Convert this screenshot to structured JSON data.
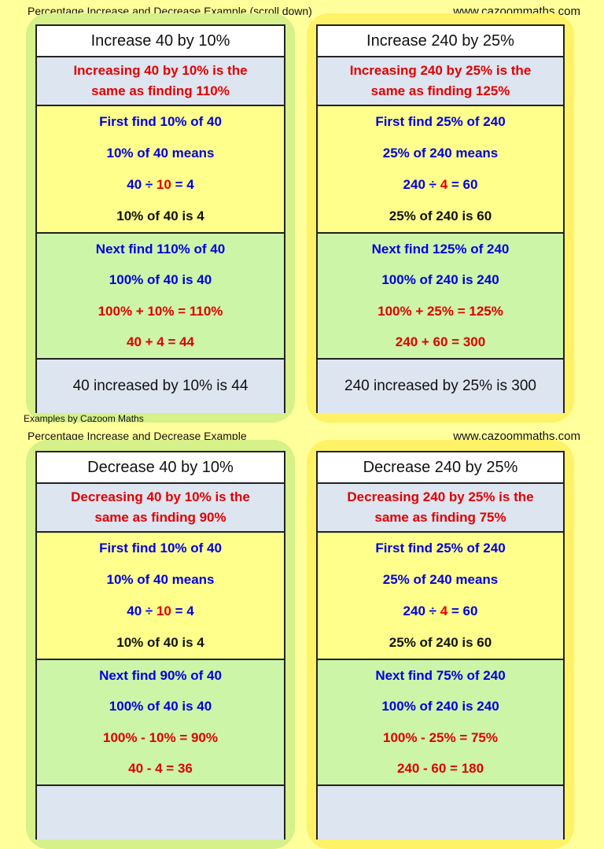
{
  "sections": [
    {
      "header": {
        "left": "Percentage Increase and Decrease Example (scroll down)",
        "right": "www.cazoommaths.com"
      },
      "cards": [
        {
          "title": "Increase 40 by 10%",
          "intro": [
            "Increasing 40 by 10% is the",
            "same as finding 110%"
          ],
          "find": [
            [
              "First find 10% of 40"
            ],
            [
              "10% of 40 means"
            ],
            [
              "40 ÷ ",
              "10",
              " = 4"
            ],
            [
              "10% of 40 is 4"
            ]
          ],
          "next": [
            [
              "Next find 110% of 40"
            ],
            [
              "100% of 40 is 40"
            ],
            [
              "100% + 10% = 110%"
            ],
            [
              "40 + 4 = 44"
            ]
          ],
          "result": "40 increased by 10% is 44"
        },
        {
          "title": "Increase 240 by 25%",
          "intro": [
            "Increasing 240 by 25% is the",
            "same as finding 125%"
          ],
          "find": [
            [
              "First find 25% of 240"
            ],
            [
              "25% of 240 means"
            ],
            [
              "240 ÷ ",
              "4",
              " = 60"
            ],
            [
              "25% of 240 is 60"
            ]
          ],
          "next": [
            [
              "Next find 125% of 240"
            ],
            [
              "100% of 240 is 240"
            ],
            [
              "100% + 25% = 125%"
            ],
            [
              "240 + 60 = 300"
            ]
          ],
          "result": "240 increased by 25% is 300"
        }
      ]
    },
    {
      "header": {
        "left": "Percentage Increase and Decrease Example",
        "right": "www.cazoommaths.com"
      },
      "cards": [
        {
          "title": "Decrease 40 by 10%",
          "intro": [
            "Decreasing 40 by 10% is the",
            "same as finding 90%"
          ],
          "find": [
            [
              "First find 10% of 40"
            ],
            [
              "10% of 40 means"
            ],
            [
              "40 ÷ ",
              "10",
              " = 4"
            ],
            [
              "10% of 40 is 4"
            ]
          ],
          "next": [
            [
              "Next find 90% of 40"
            ],
            [
              "100% of 40 is 40"
            ],
            [
              "100% - 10% = 90%"
            ],
            [
              "40 - 4 = 36"
            ]
          ]
        },
        {
          "title": "Decrease 240 by 25%",
          "intro": [
            "Decreasing 240 by 25% is the",
            "same as finding 75%"
          ],
          "find": [
            [
              "First find 25% of 240"
            ],
            [
              "25% of 240 means"
            ],
            [
              "240 ÷ ",
              "4",
              " = 60"
            ],
            [
              "25% of 240 is 60"
            ]
          ],
          "next": [
            [
              "Next find 75% of 240"
            ],
            [
              "100% of 240 is 240"
            ],
            [
              "100% - 25% = 75%"
            ],
            [
              "240 - 60 = 180"
            ]
          ]
        }
      ]
    }
  ],
  "note": "Examples by Cazoom Maths"
}
